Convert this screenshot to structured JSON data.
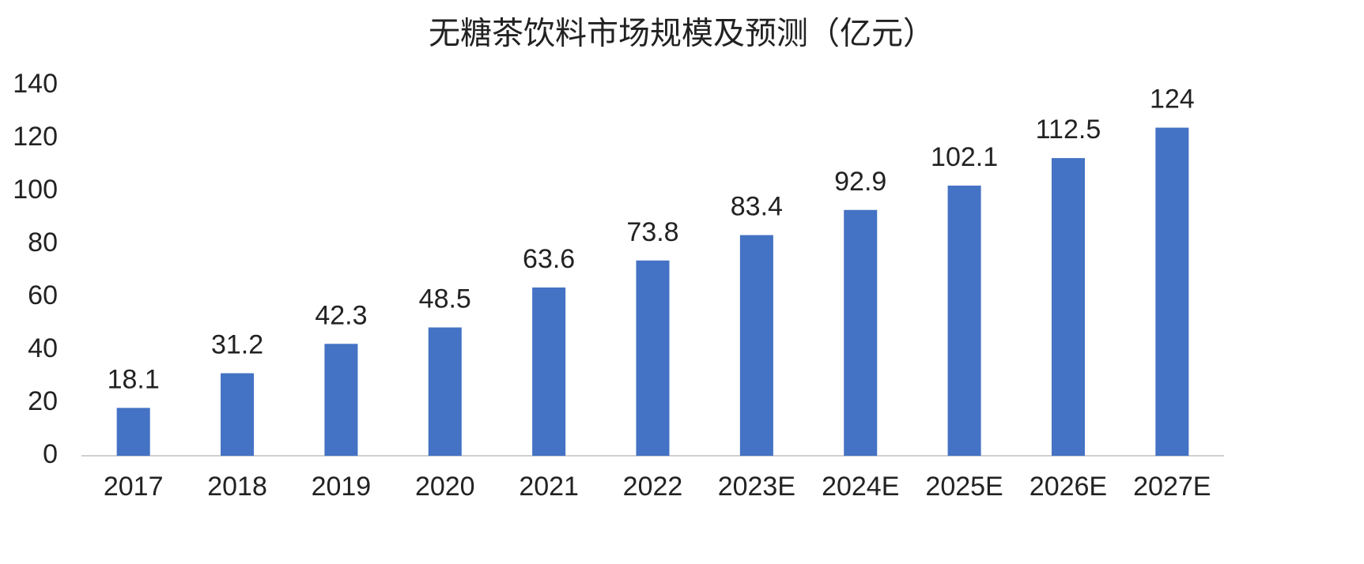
{
  "chart_data": {
    "type": "bar",
    "title": "无糖茶饮料市场规模及预测（亿元）",
    "categories": [
      "2017",
      "2018",
      "2019",
      "2020",
      "2021",
      "2022",
      "2023E",
      "2024E",
      "2025E",
      "2026E",
      "2027E"
    ],
    "values": [
      18.1,
      31.2,
      42.3,
      48.5,
      63.6,
      73.8,
      83.4,
      92.9,
      102.1,
      112.5,
      124
    ],
    "color": "#4472c4",
    "ylim": [
      0,
      140
    ],
    "yticks": [
      0,
      20,
      40,
      60,
      80,
      100,
      120,
      140
    ],
    "grid": false
  }
}
